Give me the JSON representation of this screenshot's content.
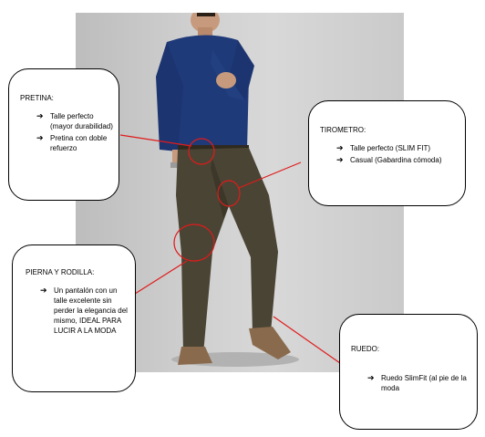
{
  "callouts": {
    "pretina": {
      "title": "PRETINA:",
      "items": [
        "Talle perfecto (mayor durabilidad)",
        "Pretina con doble refuerzo"
      ]
    },
    "tirometro": {
      "title": "TIROMETRO:",
      "items": [
        "Talle perfecto (SLIM FIT)",
        "Casual (Gabardina cómoda)"
      ]
    },
    "pierna": {
      "title": "PIERNA Y RODILLA:",
      "items": [
        "Un pantalón con un talle excelente sin perder la elegancia del mismo, IDEAL PARA LUCIR A LA MODA"
      ]
    },
    "ruedo": {
      "title": "RUEDO:",
      "items": [
        "Ruedo SlimFit (al pie de la moda"
      ]
    }
  },
  "bullet_icon": "right-arrow-icon",
  "colors": {
    "shirt": "#1f3a78",
    "pants": "#4a4434",
    "shoes": "#8a6a4c",
    "annotation": "#e01b1b",
    "background": "#cfcfcf"
  }
}
